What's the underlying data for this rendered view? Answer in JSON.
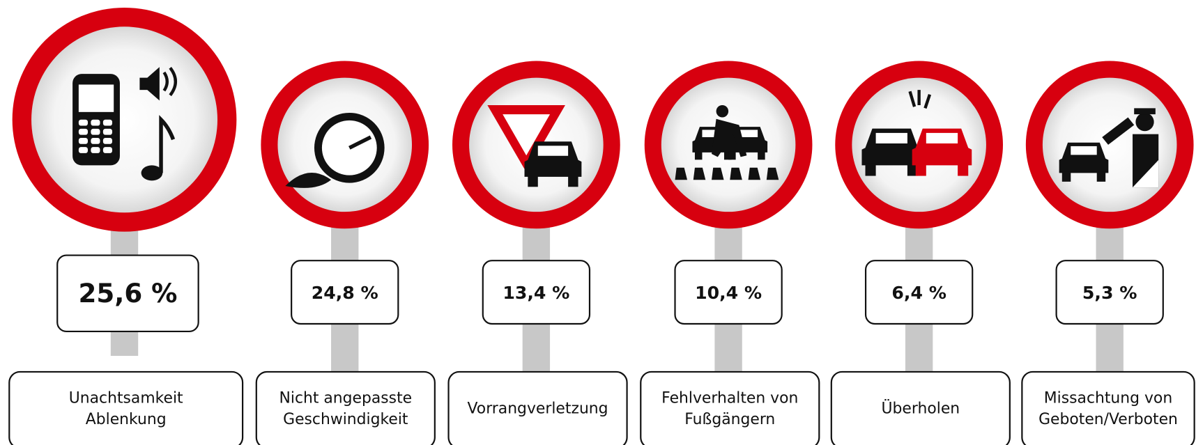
{
  "items": [
    {
      "value": "25,6 %",
      "label_lines": [
        "Unachtsamkeit",
        "Ablenkung"
      ]
    },
    {
      "value": "24,8 %",
      "label_lines": [
        "Nicht angepasste",
        "Geschwindigkeit"
      ]
    },
    {
      "value": "13,4 %",
      "label_lines": [
        "Vorrangverletzung"
      ]
    },
    {
      "value": "10,4 %",
      "label_lines": [
        "Fehlverhalten von",
        "Fußgängern"
      ]
    },
    {
      "value": "6,4 %",
      "label_lines": [
        "Überholen"
      ]
    },
    {
      "value": "5,3 %",
      "label_lines": [
        "Missachtung von",
        "Geboten/Verboten"
      ]
    }
  ]
}
